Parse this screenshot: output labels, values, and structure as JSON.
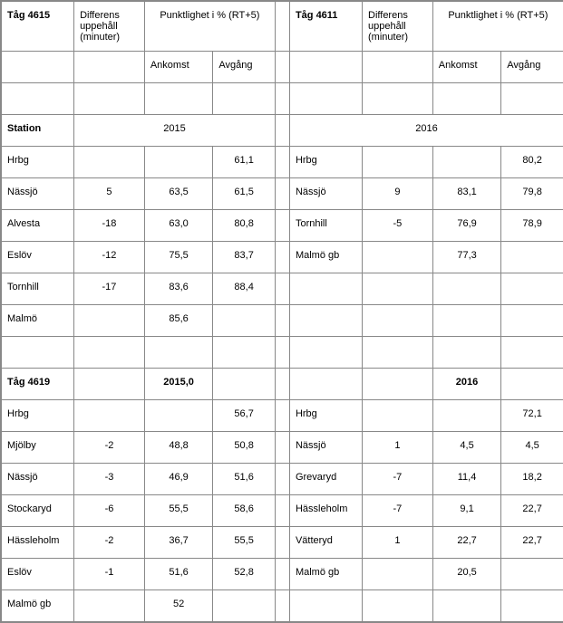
{
  "colors": {
    "border": "#888888",
    "text": "#000000",
    "background": "#ffffff"
  },
  "typography": {
    "font_family": "Arial",
    "base_fontsize_pt": 8,
    "header_weight": "bold"
  },
  "headers": {
    "left_train": "Tåg 4615",
    "right_train": "Tåg 4611",
    "diff": "Differens uppehåll (minuter)",
    "punct": "Punktlighet i % (RT+5)",
    "ankomst": "Ankomst",
    "avgang": "Avgång",
    "station": "Station",
    "year_left": "2015",
    "year_right": "2016",
    "train_4619": "Tåg 4619",
    "year_left2": "2015,0",
    "year_right2": "2016"
  },
  "block1_left": [
    {
      "station": "Hrbg",
      "diff": "",
      "ank": "",
      "avg": "61,1"
    },
    {
      "station": "Nässjö",
      "diff": "5",
      "ank": "63,5",
      "avg": "61,5"
    },
    {
      "station": "Alvesta",
      "diff": "-18",
      "ank": "63,0",
      "avg": "80,8"
    },
    {
      "station": "Eslöv",
      "diff": "-12",
      "ank": "75,5",
      "avg": "83,7"
    },
    {
      "station": "Tornhill",
      "diff": "-17",
      "ank": "83,6",
      "avg": "88,4"
    },
    {
      "station": "Malmö",
      "diff": "",
      "ank": "85,6",
      "avg": ""
    }
  ],
  "block1_right": [
    {
      "station": "Hrbg",
      "diff": "",
      "ank": "",
      "avg": "80,2"
    },
    {
      "station": "Nässjö",
      "diff": "9",
      "ank": "83,1",
      "avg": "79,8"
    },
    {
      "station": "Tornhill",
      "diff": "-5",
      "ank": "76,9",
      "avg": "78,9"
    },
    {
      "station": "Malmö gb",
      "diff": "",
      "ank": "77,3",
      "avg": ""
    },
    {
      "station": "",
      "diff": "",
      "ank": "",
      "avg": ""
    },
    {
      "station": "",
      "diff": "",
      "ank": "",
      "avg": ""
    }
  ],
  "block2_left": [
    {
      "station": "Hrbg",
      "diff": "",
      "ank": "",
      "avg": "56,7"
    },
    {
      "station": "Mjölby",
      "diff": "-2",
      "ank": "48,8",
      "avg": "50,8"
    },
    {
      "station": "Nässjö",
      "diff": "-3",
      "ank": "46,9",
      "avg": "51,6"
    },
    {
      "station": "Stockaryd",
      "diff": "-6",
      "ank": "55,5",
      "avg": "58,6"
    },
    {
      "station": "Hässleholm",
      "diff": "-2",
      "ank": "36,7",
      "avg": "55,5"
    },
    {
      "station": "Eslöv",
      "diff": "-1",
      "ank": "51,6",
      "avg": "52,8"
    },
    {
      "station": "Malmö gb",
      "diff": "",
      "ank": "52",
      "avg": ""
    }
  ],
  "block2_right": [
    {
      "station": "Hrbg",
      "diff": "",
      "ank": "",
      "avg": "72,1"
    },
    {
      "station": "Nässjö",
      "diff": "1",
      "ank": "4,5",
      "avg": "4,5"
    },
    {
      "station": "Grevaryd",
      "diff": "-7",
      "ank": "11,4",
      "avg": "18,2"
    },
    {
      "station": "Hässleholm",
      "diff": "-7",
      "ank": "9,1",
      "avg": "22,7"
    },
    {
      "station": "Vätteryd",
      "diff": "1",
      "ank": "22,7",
      "avg": "22,7"
    },
    {
      "station": "Malmö gb",
      "diff": "",
      "ank": "20,5",
      "avg": ""
    },
    {
      "station": "",
      "diff": "",
      "ank": "",
      "avg": ""
    }
  ]
}
